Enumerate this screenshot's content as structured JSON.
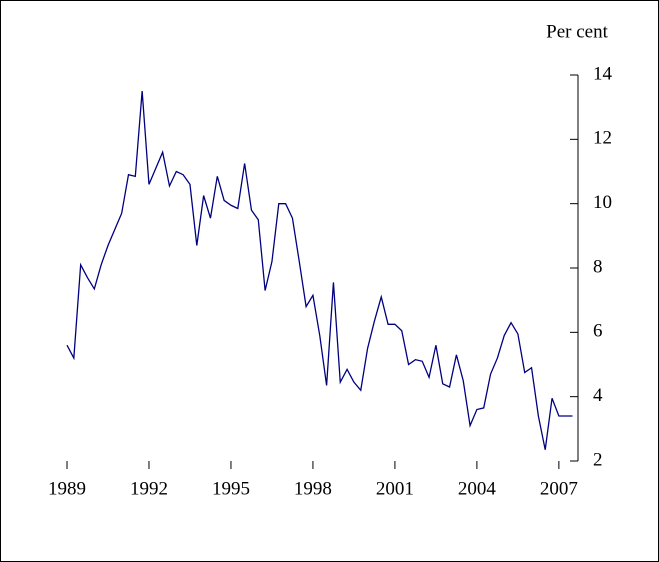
{
  "chart_data": {
    "type": "line",
    "y_axis_label": "Per cent",
    "y_axis_side": "right",
    "x": [
      1989,
      1989.25,
      1989.5,
      1989.75,
      1990,
      1990.25,
      1990.5,
      1990.75,
      1991,
      1991.25,
      1991.5,
      1991.75,
      1992,
      1992.25,
      1992.5,
      1992.75,
      1993,
      1993.25,
      1993.5,
      1993.75,
      1994,
      1994.25,
      1994.5,
      1994.75,
      1995,
      1995.25,
      1995.5,
      1995.75,
      1996,
      1996.25,
      1996.5,
      1996.75,
      1997,
      1997.25,
      1997.5,
      1997.75,
      1998,
      1998.25,
      1998.5,
      1998.75,
      1999,
      1999.25,
      1999.5,
      1999.75,
      2000,
      2000.25,
      2000.5,
      2000.75,
      2001,
      2001.25,
      2001.5,
      2001.75,
      2002,
      2002.25,
      2002.5,
      2002.75,
      2003,
      2003.25,
      2003.5,
      2003.75,
      2004,
      2004.25,
      2004.5,
      2004.75,
      2005,
      2005.25,
      2005.5,
      2005.75,
      2006,
      2006.25,
      2006.5,
      2006.75,
      2007,
      2007.25,
      2007.5
    ],
    "series": [
      {
        "color": "#000080",
        "values": [
          5.6,
          5.2,
          8.1,
          7.7,
          7.35,
          8.1,
          8.7,
          9.2,
          9.7,
          10.9,
          10.85,
          13.5,
          10.6,
          11.1,
          11.6,
          10.55,
          11.0,
          10.9,
          10.6,
          8.7,
          10.25,
          9.55,
          10.85,
          10.1,
          9.95,
          9.85,
          11.25,
          9.8,
          9.5,
          7.3,
          8.2,
          10.0,
          10.0,
          9.55,
          8.2,
          6.8,
          7.15,
          5.9,
          4.35,
          7.55,
          4.45,
          4.85,
          4.45,
          4.2,
          5.5,
          6.35,
          7.1,
          6.25,
          6.25,
          6.05,
          5.0,
          5.15,
          5.1,
          4.6,
          5.6,
          4.4,
          4.3,
          5.3,
          4.5,
          3.1,
          3.6,
          3.65,
          4.7,
          5.2,
          5.9,
          6.3,
          5.95,
          4.75,
          4.9,
          3.4,
          2.35,
          3.95,
          3.4,
          3.4,
          3.4
        ]
      }
    ],
    "xlim": [
      1989,
      2007.7
    ],
    "xticks": [
      1989,
      1992,
      1995,
      1998,
      2001,
      2004,
      2007
    ],
    "ylim": [
      2,
      14
    ],
    "yticks": [
      2,
      4,
      6,
      8,
      10,
      12,
      14
    ]
  }
}
